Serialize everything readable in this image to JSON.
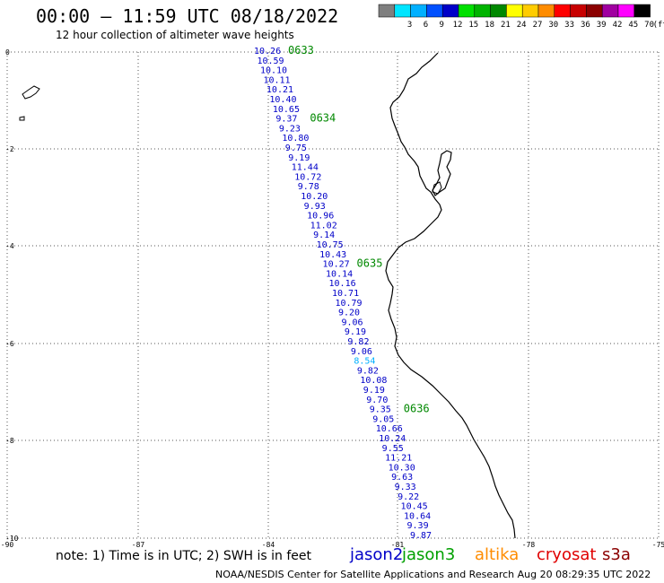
{
  "title": "00:00 – 11:59 UTC 08/18/2022",
  "subtitle": "12 hour collection of altimeter wave heights",
  "legend": {
    "unit": "(ft)",
    "bins": [
      {
        "label": "",
        "color": "#7f7f7f"
      },
      {
        "label": "3",
        "color": "#00e5ff"
      },
      {
        "label": "6",
        "color": "#00b0ff"
      },
      {
        "label": "9",
        "color": "#0050ff"
      },
      {
        "label": "12",
        "color": "#0000c8"
      },
      {
        "label": "15",
        "color": "#00e000"
      },
      {
        "label": "18",
        "color": "#00b400"
      },
      {
        "label": "21",
        "color": "#008800"
      },
      {
        "label": "24",
        "color": "#ffff00"
      },
      {
        "label": "27",
        "color": "#ffcc00"
      },
      {
        "label": "30",
        "color": "#ff8c00"
      },
      {
        "label": "33",
        "color": "#ff0000"
      },
      {
        "label": "36",
        "color": "#c80000"
      },
      {
        "label": "39",
        "color": "#8b0000"
      },
      {
        "label": "42",
        "color": "#a000a0"
      },
      {
        "label": "45",
        "color": "#ff00ff"
      },
      {
        "label": "70",
        "color": "#000000"
      }
    ]
  },
  "axes": {
    "lat_labels": [
      "0",
      "-2",
      "-4",
      "-6",
      "-8",
      "-10"
    ],
    "lon_labels": [
      "-90",
      "-87",
      "-84",
      "-81",
      "-78",
      "-75"
    ]
  },
  "track": {
    "color_normal": "#0000c8",
    "color_low": "#00b0ff",
    "values": [
      "10.26",
      "10.59",
      "10.10",
      "10.11",
      "10.21",
      "10.40",
      "10.65",
      "9.37",
      "9.23",
      "10.80",
      "9.75",
      "9.19",
      "11.44",
      "10.72",
      "9.78",
      "10.20",
      "9.93",
      "10.96",
      "11.02",
      "9.14",
      "10.75",
      "10.43",
      "10.27",
      "10.14",
      "10.16",
      "10.71",
      "10.79",
      "9.20",
      "9.06",
      "9.19",
      "9.82",
      "9.06",
      "8.54",
      "9.82",
      "10.08",
      "9.19",
      "9.70",
      "9.35",
      "9.05",
      "10.66",
      "10.24",
      "9.55",
      "11.21",
      "10.30",
      "9.63",
      "9.33",
      "9.22",
      "10.45",
      "10.64",
      "9.39",
      "9.87"
    ],
    "times": [
      {
        "label": "0633",
        "index": 0
      },
      {
        "label": "0634",
        "index": 7
      },
      {
        "label": "0635",
        "index": 22
      },
      {
        "label": "0636",
        "index": 37
      }
    ],
    "time_color": "#008800"
  },
  "note": "note: 1) Time is in UTC; 2) SWH is in feet",
  "satellites": [
    {
      "name": "jason2",
      "color": "#0000c8"
    },
    {
      "name": "jason3",
      "color": "#00a000"
    },
    {
      "name": "altika",
      "color": "#ff8c00"
    },
    {
      "name": "cryosat",
      "color": "#e00000"
    },
    {
      "name": "s3a",
      "color": "#8b0000"
    }
  ],
  "credit": "NOAA/NESDIS Center for Satellite Applications and Research   Aug 20 08:29:35 UTC 2022"
}
